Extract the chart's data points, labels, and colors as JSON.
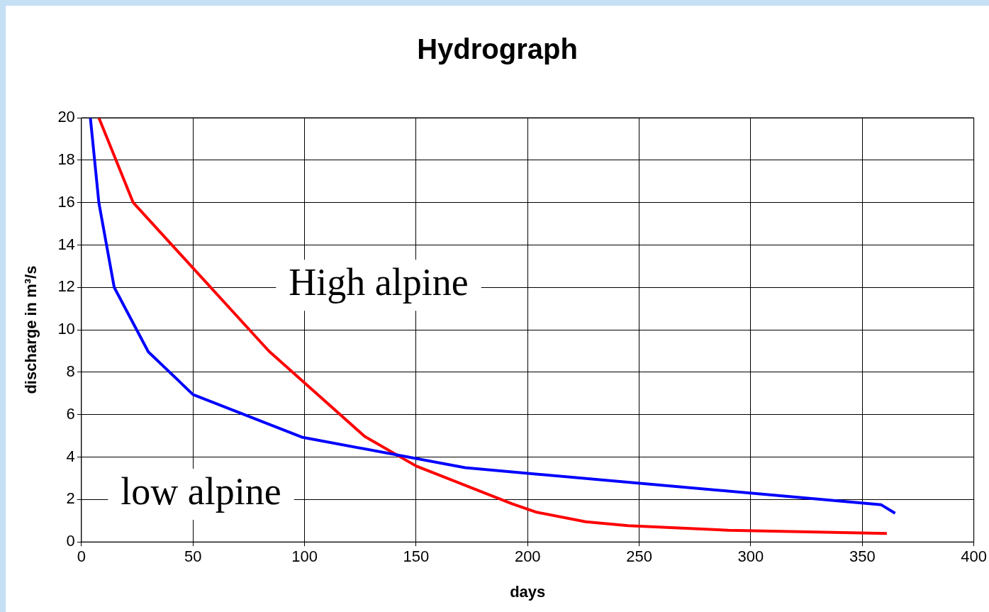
{
  "chart_data": {
    "type": "line",
    "title": "Hydrograph",
    "xlabel": "days",
    "ylabel": "discharge in m³/s",
    "xlim": [
      0,
      400
    ],
    "xticks": [
      0,
      50,
      100,
      150,
      200,
      250,
      300,
      350,
      400
    ],
    "ylim": [
      0,
      20
    ],
    "yticks": [
      0,
      2,
      4,
      6,
      8,
      10,
      12,
      14,
      16,
      18,
      20
    ],
    "grid": true,
    "legend": false,
    "marker": "none",
    "line_style": "solid",
    "series": [
      {
        "color": "#0000ff",
        "x": [
          4,
          7.8,
          14.7,
          30,
          50,
          98.8,
          172,
          358.5,
          364.7
        ],
        "values": [
          20,
          16,
          12,
          8.96,
          6.95,
          4.94,
          3.5,
          1.75,
          1.35
        ]
      },
      {
        "color": "#ff0000",
        "x": [
          7.8,
          23.2,
          84,
          127,
          150,
          193,
          204,
          226,
          245,
          290,
          361
        ],
        "values": [
          20,
          16,
          9,
          4.97,
          3.58,
          1.8,
          1.4,
          0.95,
          0.77,
          0.55,
          0.4
        ]
      }
    ],
    "annotations": [
      "High alpine",
      "low alpine"
    ]
  }
}
